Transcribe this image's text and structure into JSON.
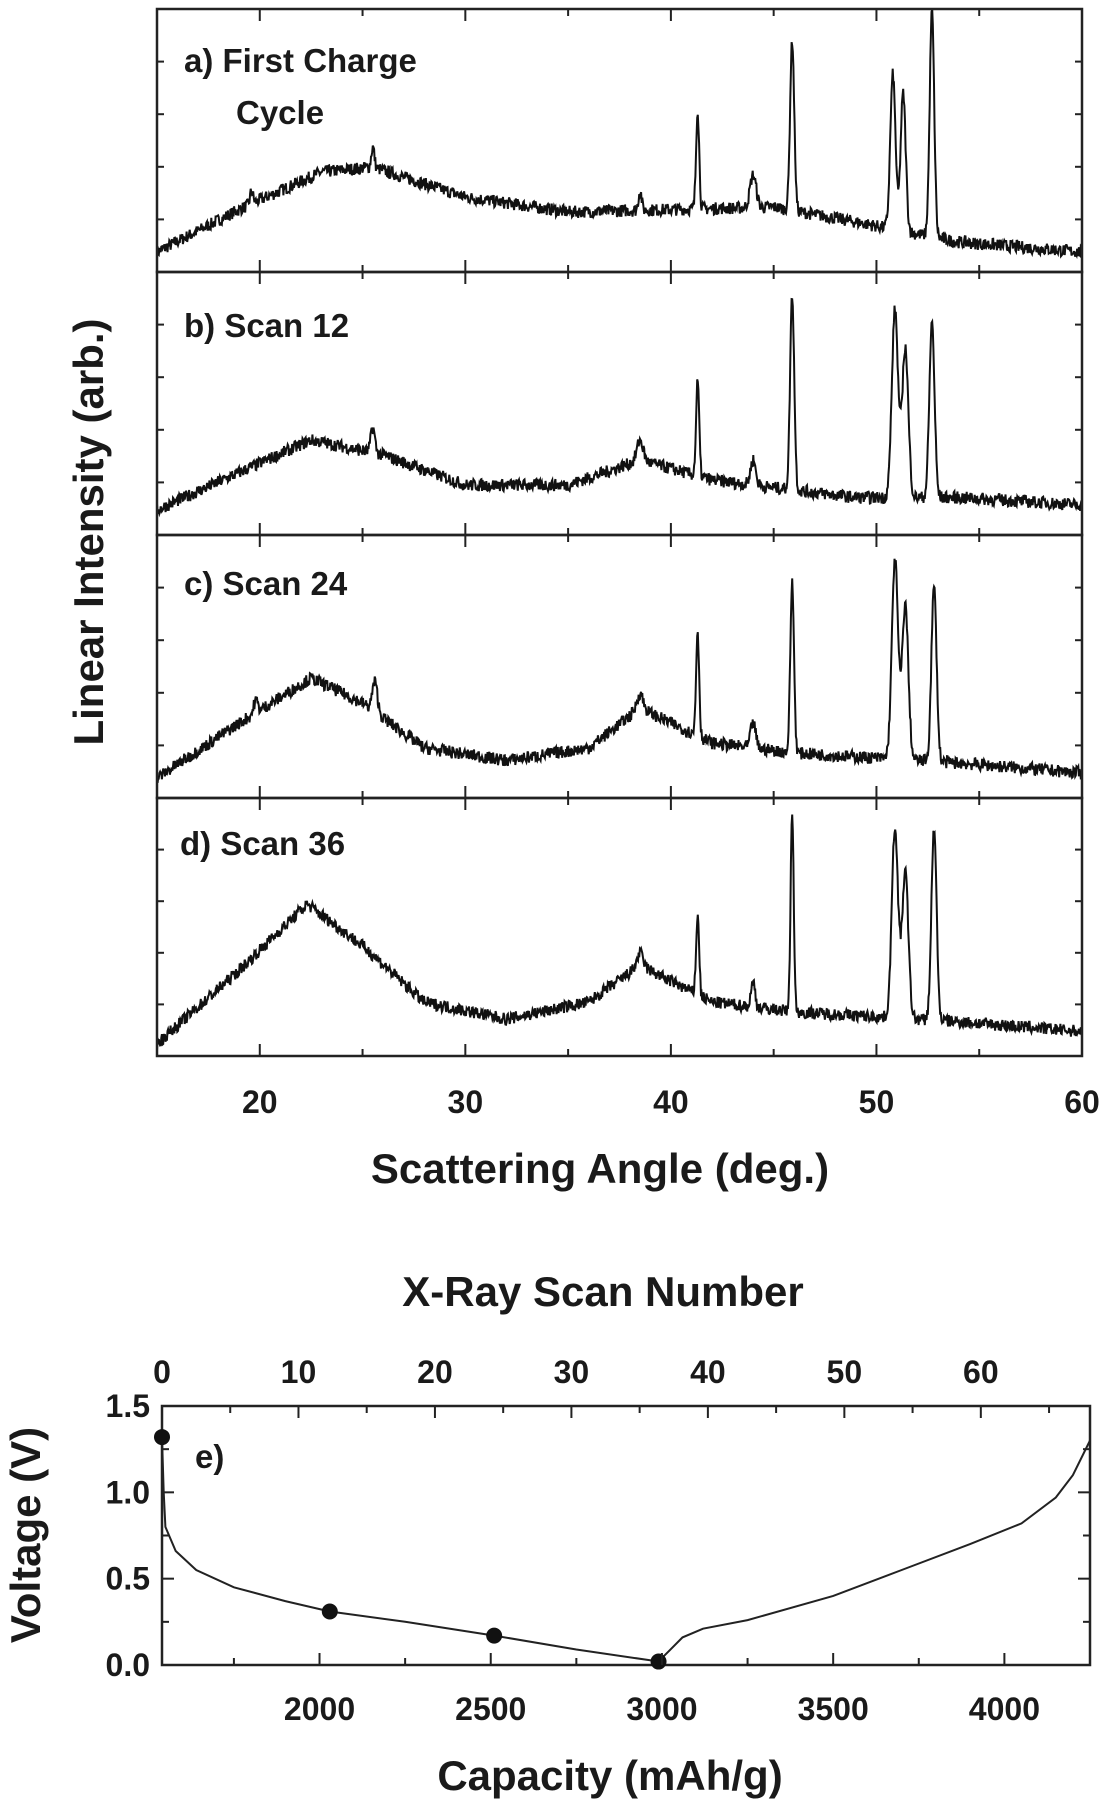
{
  "chart_data": [
    {
      "type": "line",
      "title": "",
      "xlabel": "Scattering Angle (deg.)",
      "ylabel": "Linear Intensity (arb.)",
      "xlim": [
        15,
        60
      ],
      "xticks": [
        "20",
        "30",
        "40",
        "50",
        "60"
      ],
      "xtick_values": [
        20,
        30,
        40,
        50,
        60
      ],
      "panels": [
        {
          "label": "a) First Charge",
          "label2": "Cycle",
          "baseline": [
            [
              15,
              0.08
            ],
            [
              19,
              0.25
            ],
            [
              23,
              0.4
            ],
            [
              25.5,
              0.42
            ],
            [
              30,
              0.3
            ],
            [
              35,
              0.24
            ],
            [
              40,
              0.25
            ],
            [
              45,
              0.26
            ],
            [
              49,
              0.2
            ],
            [
              54,
              0.12
            ],
            [
              60,
              0.08
            ]
          ],
          "peaks": [
            [
              19.6,
              0.05,
              0.15
            ],
            [
              25.5,
              0.08,
              0.15
            ],
            [
              38.5,
              0.08,
              0.15
            ],
            [
              41.3,
              0.4,
              0.15
            ],
            [
              44,
              0.13,
              0.3
            ],
            [
              45.9,
              0.68,
              0.2
            ],
            [
              50.8,
              0.62,
              0.25
            ],
            [
              51.3,
              0.55,
              0.25
            ],
            [
              52.7,
              0.9,
              0.22
            ]
          ]
        },
        {
          "label": "b) Scan 12",
          "baseline": [
            [
              15,
              0.1
            ],
            [
              19,
              0.25
            ],
            [
              22.5,
              0.38
            ],
            [
              26,
              0.32
            ],
            [
              30,
              0.2
            ],
            [
              35,
              0.2
            ],
            [
              38.5,
              0.3
            ],
            [
              42,
              0.22
            ],
            [
              46,
              0.18
            ],
            [
              49,
              0.15
            ],
            [
              54,
              0.15
            ],
            [
              60,
              0.12
            ]
          ],
          "peaks": [
            [
              25.5,
              0.1,
              0.2
            ],
            [
              38.5,
              0.08,
              0.3
            ],
            [
              41.3,
              0.38,
              0.15
            ],
            [
              44,
              0.1,
              0.25
            ],
            [
              45.9,
              0.78,
              0.2
            ],
            [
              50.9,
              0.75,
              0.3
            ],
            [
              51.4,
              0.6,
              0.3
            ],
            [
              52.7,
              0.7,
              0.25
            ]
          ]
        },
        {
          "label": "c) Scan 24",
          "baseline": [
            [
              15,
              0.08
            ],
            [
              19,
              0.3
            ],
            [
              22.5,
              0.48
            ],
            [
              25,
              0.38
            ],
            [
              28,
              0.2
            ],
            [
              32,
              0.15
            ],
            [
              36,
              0.2
            ],
            [
              38.5,
              0.36
            ],
            [
              42,
              0.22
            ],
            [
              46,
              0.18
            ],
            [
              50,
              0.16
            ],
            [
              54,
              0.14
            ],
            [
              60,
              0.1
            ]
          ],
          "peaks": [
            [
              19.8,
              0.05,
              0.2
            ],
            [
              25.6,
              0.12,
              0.25
            ],
            [
              38.5,
              0.06,
              0.3
            ],
            [
              41.3,
              0.42,
              0.15
            ],
            [
              44,
              0.1,
              0.25
            ],
            [
              45.9,
              0.68,
              0.18
            ],
            [
              50.9,
              0.8,
              0.3
            ],
            [
              51.4,
              0.62,
              0.3
            ],
            [
              52.8,
              0.7,
              0.25
            ]
          ]
        },
        {
          "label": "d) Scan 36",
          "baseline": [
            [
              15,
              0.05
            ],
            [
              19,
              0.35
            ],
            [
              22.3,
              0.62
            ],
            [
              25,
              0.45
            ],
            [
              28,
              0.22
            ],
            [
              32,
              0.15
            ],
            [
              36,
              0.22
            ],
            [
              38.5,
              0.37
            ],
            [
              42,
              0.22
            ],
            [
              46,
              0.18
            ],
            [
              50,
              0.16
            ],
            [
              54,
              0.14
            ],
            [
              60,
              0.1
            ]
          ],
          "peaks": [
            [
              38.5,
              0.05,
              0.3
            ],
            [
              41.3,
              0.32,
              0.15
            ],
            [
              44,
              0.1,
              0.2
            ],
            [
              45.9,
              0.82,
              0.15
            ],
            [
              50.9,
              0.78,
              0.3
            ],
            [
              51.4,
              0.6,
              0.3
            ],
            [
              52.8,
              0.78,
              0.25
            ]
          ]
        }
      ]
    },
    {
      "type": "line",
      "panel_label": "e)",
      "xlabel": "Capacity (mAh/g)",
      "ylabel": "Voltage (V)",
      "top_xlabel": "X-Ray Scan Number",
      "xlim": [
        1540,
        4250
      ],
      "ylim": [
        0,
        1.5
      ],
      "xticks": [
        "2000",
        "2500",
        "3000",
        "3500",
        "4000"
      ],
      "xtick_values": [
        2000,
        2500,
        3000,
        3500,
        4000
      ],
      "yticks": [
        "0.0",
        "0.5",
        "1.0",
        "1.5"
      ],
      "ytick_values": [
        0,
        0.5,
        1.0,
        1.5
      ],
      "top_xlim": [
        0,
        68
      ],
      "top_xticks": [
        "0",
        "10",
        "20",
        "30",
        "40",
        "50",
        "60"
      ],
      "top_xtick_values": [
        0,
        10,
        20,
        30,
        40,
        50,
        60
      ],
      "curve": [
        [
          1540,
          1.32
        ],
        [
          1545,
          1.0
        ],
        [
          1550,
          0.8
        ],
        [
          1580,
          0.66
        ],
        [
          1640,
          0.55
        ],
        [
          1750,
          0.45
        ],
        [
          1900,
          0.37
        ],
        [
          2030,
          0.31
        ],
        [
          2250,
          0.25
        ],
        [
          2510,
          0.17
        ],
        [
          2750,
          0.09
        ],
        [
          2990,
          0.02
        ],
        [
          3020,
          0.08
        ],
        [
          3060,
          0.16
        ],
        [
          3120,
          0.21
        ],
        [
          3250,
          0.26
        ],
        [
          3500,
          0.4
        ],
        [
          3700,
          0.55
        ],
        [
          3900,
          0.7
        ],
        [
          4050,
          0.82
        ],
        [
          4150,
          0.97
        ],
        [
          4200,
          1.1
        ],
        [
          4250,
          1.3
        ]
      ],
      "markers": [
        [
          1540,
          1.32
        ],
        [
          2030,
          0.31
        ],
        [
          2510,
          0.17
        ],
        [
          2990,
          0.02
        ]
      ]
    }
  ]
}
